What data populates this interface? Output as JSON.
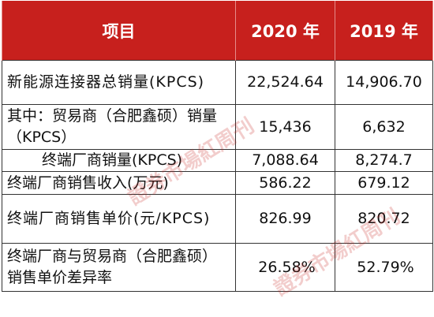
{
  "table": {
    "headers": [
      "项目",
      "2020 年",
      "2019 年"
    ],
    "rows": [
      {
        "label": "新能源连接器总销量(KPCS)",
        "v2020": "22,524.64",
        "v2019": "14,906.70"
      },
      {
        "label": "其中：贸易商（合肥鑫硕）销量（KPCS）",
        "v2020": "15,436",
        "v2019": "6,632"
      },
      {
        "label": "终端厂商销量(KPCS)",
        "v2020": "7,088.64",
        "v2019": "8,274.7"
      },
      {
        "label": "终端厂商销售收入(万元)",
        "v2020": "586.22",
        "v2019": "679.12"
      },
      {
        "label": "终端厂商销售单价(元/KPCS)",
        "v2020": "826.99",
        "v2019": "820.72"
      },
      {
        "label": "终端厂商与贸易商（合肥鑫硕）销售单价差异率",
        "v2020": "26.58%",
        "v2019": "52.79%"
      }
    ]
  },
  "watermark": {
    "text": "證券市場紅周刊",
    "color": "#c7201d"
  }
}
